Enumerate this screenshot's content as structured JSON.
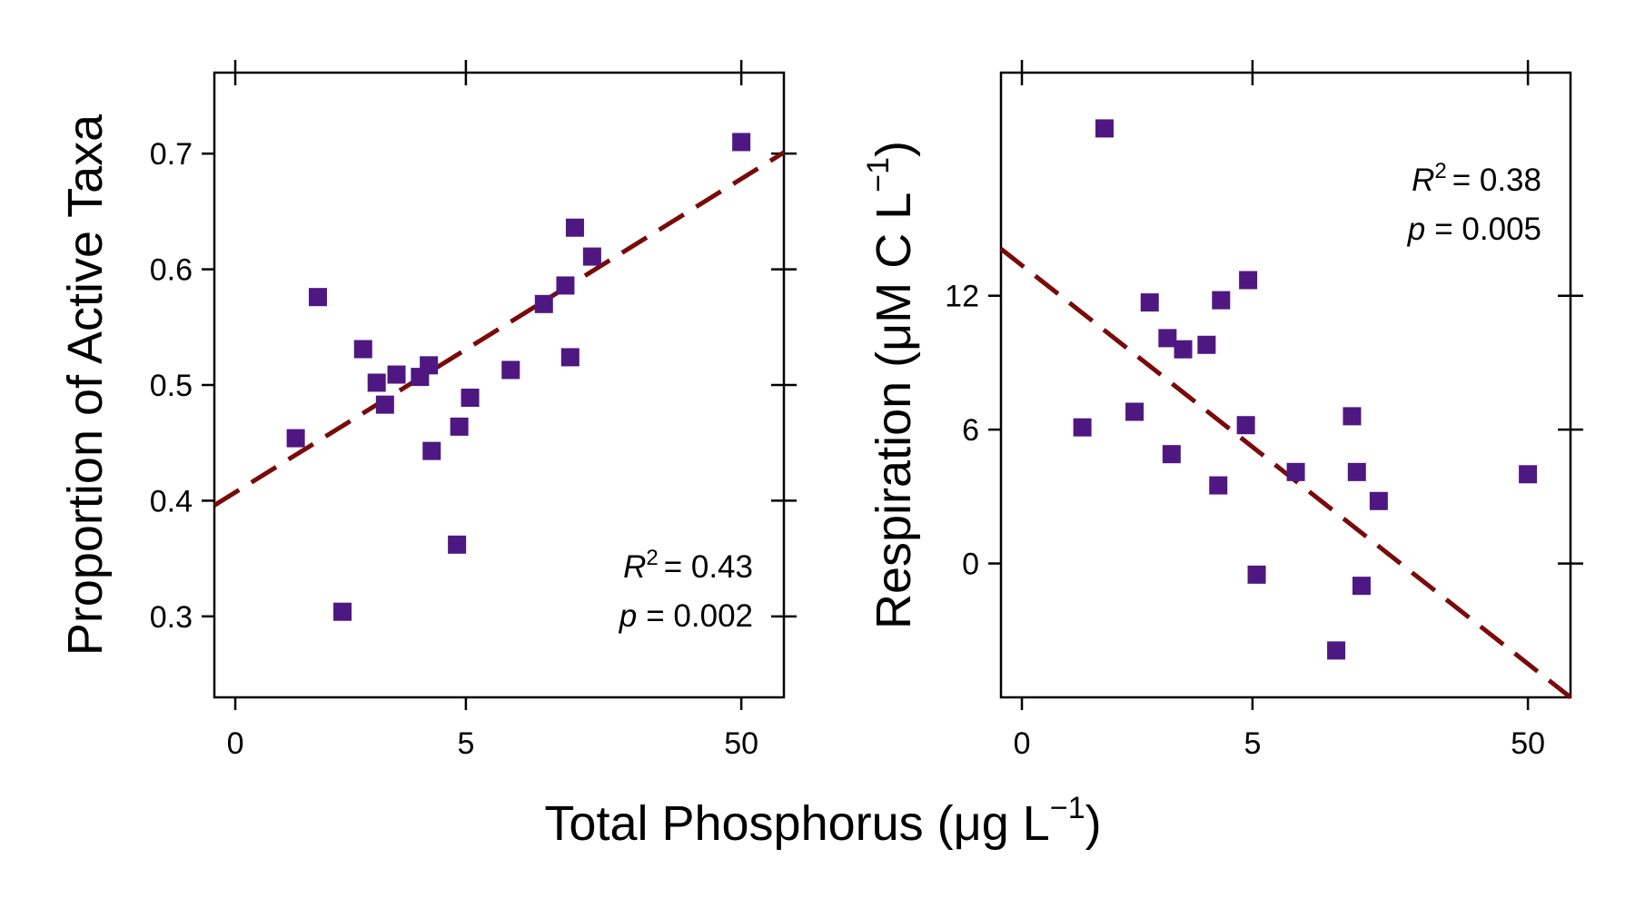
{
  "chart_data": [
    {
      "type": "scatter",
      "panel": "left",
      "xlabel": "Total Phosphorus (μg L⁻¹)",
      "ylabel": "Proportion of Active Taxa",
      "x_scale": "log(x+1)",
      "x_ticks": [
        "0",
        "5",
        "50"
      ],
      "x_tick_values": [
        0,
        5,
        50
      ],
      "y_ticks": [
        "0.3",
        "0.4",
        "0.5",
        "0.6",
        "0.7"
      ],
      "y_tick_values": [
        0.3,
        0.4,
        0.5,
        0.6,
        0.7
      ],
      "xlim": [
        -0.15,
        70
      ],
      "ylim": [
        0.23,
        0.77
      ],
      "points": [
        {
          "x": 0.6,
          "y": 0.454
        },
        {
          "x": 0.9,
          "y": 0.576
        },
        {
          "x": 1.3,
          "y": 0.304
        },
        {
          "x": 1.7,
          "y": 0.531
        },
        {
          "x": 2.0,
          "y": 0.502
        },
        {
          "x": 2.2,
          "y": 0.483
        },
        {
          "x": 2.5,
          "y": 0.509
        },
        {
          "x": 3.2,
          "y": 0.507
        },
        {
          "x": 3.5,
          "y": 0.517
        },
        {
          "x": 3.6,
          "y": 0.443
        },
        {
          "x": 4.6,
          "y": 0.362
        },
        {
          "x": 4.7,
          "y": 0.464
        },
        {
          "x": 5.2,
          "y": 0.489
        },
        {
          "x": 7.5,
          "y": 0.513
        },
        {
          "x": 10.0,
          "y": 0.57
        },
        {
          "x": 12.0,
          "y": 0.586
        },
        {
          "x": 12.5,
          "y": 0.524
        },
        {
          "x": 13.0,
          "y": 0.636
        },
        {
          "x": 15.0,
          "y": 0.611
        },
        {
          "x": 50.0,
          "y": 0.71
        }
      ],
      "fit_line": {
        "x": [
          -0.15,
          70
        ],
        "y": [
          0.396,
          0.701
        ]
      },
      "r2_label": "R",
      "r2_sup": "2",
      "r2_value": "= 0.43",
      "p_label": "p",
      "p_value": "= 0.002"
    },
    {
      "type": "scatter",
      "panel": "right",
      "xlabel": "Total Phosphorus (μg L⁻¹)",
      "ylabel": "Respiration (μM C L⁻¹)",
      "x_scale": "log(x+1)",
      "x_ticks": [
        "0",
        "5",
        "50"
      ],
      "x_tick_values": [
        0,
        5,
        50
      ],
      "y_ticks": [
        "0",
        "6",
        "12"
      ],
      "y_tick_values": [
        0,
        6,
        12
      ],
      "xlim": [
        -0.15,
        70
      ],
      "ylim": [
        -6.0,
        22.0
      ],
      "points": [
        {
          "x": 0.6,
          "y": 6.1
        },
        {
          "x": 0.9,
          "y": 19.5
        },
        {
          "x": 1.4,
          "y": 6.8
        },
        {
          "x": 1.7,
          "y": 11.7
        },
        {
          "x": 2.1,
          "y": 10.1
        },
        {
          "x": 2.2,
          "y": 4.9
        },
        {
          "x": 2.5,
          "y": 9.6
        },
        {
          "x": 3.2,
          "y": 9.8
        },
        {
          "x": 3.6,
          "y": 3.5
        },
        {
          "x": 3.7,
          "y": 11.8
        },
        {
          "x": 4.7,
          "y": 6.2
        },
        {
          "x": 4.8,
          "y": 12.7
        },
        {
          "x": 5.2,
          "y": -0.5
        },
        {
          "x": 7.4,
          "y": 4.1
        },
        {
          "x": 10.5,
          "y": -3.9
        },
        {
          "x": 12.0,
          "y": 6.6
        },
        {
          "x": 12.5,
          "y": 4.1
        },
        {
          "x": 13.0,
          "y": -1.0
        },
        {
          "x": 15.0,
          "y": 2.8
        },
        {
          "x": 50.0,
          "y": 4.0
        }
      ],
      "fit_line": {
        "x": [
          -0.15,
          70
        ],
        "y": [
          14.1,
          -6.0
        ]
      },
      "r2_label": "R",
      "r2_sup": "2",
      "r2_value": "= 0.38",
      "p_label": "p",
      "p_value": "= 0.005"
    }
  ],
  "shared_xlabel": {
    "main": "Total Phosphorus (μg L",
    "sup": "−1",
    "close": ")"
  },
  "left_ylabel": "Proportion of Active Taxa",
  "right_ylabel": {
    "main": "Respiration (μM C L",
    "sup": "−1",
    "close": ")"
  }
}
